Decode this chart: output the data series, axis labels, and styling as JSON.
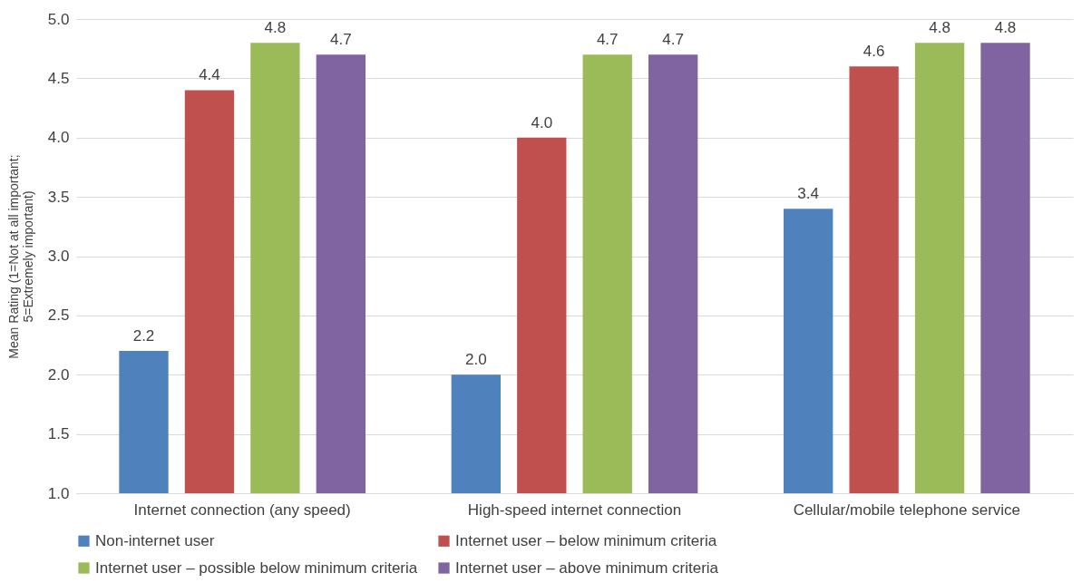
{
  "chart_data": {
    "type": "bar",
    "ylabel": "Mean Rating (1=Not at all important;\n5=Extremely important)",
    "categories": [
      "Internet connection (any speed)",
      "High-speed internet connection",
      "Cellular/mobile telephone service"
    ],
    "series": [
      {
        "name": "Non-internet user",
        "color": "#4f81bd",
        "values": [
          2.2,
          2.0,
          3.4
        ],
        "value_labels": [
          "2.2",
          "2.0",
          "3.4"
        ]
      },
      {
        "name": "Internet user – below minimum criteria",
        "color": "#c0504d",
        "values": [
          4.4,
          4.0,
          4.6
        ],
        "value_labels": [
          "4.4",
          "4.0",
          "4.6"
        ]
      },
      {
        "name": "Internet user – possible below minimum criteria",
        "color": "#9bbb59",
        "values": [
          4.8,
          4.7,
          4.8
        ],
        "value_labels": [
          "4.8",
          "4.7",
          "4.8"
        ]
      },
      {
        "name": "Internet user – above minimum criteria",
        "color": "#8064a2",
        "values": [
          4.7,
          4.7,
          4.8
        ],
        "value_labels": [
          "4.7",
          "4.7",
          "4.8"
        ]
      }
    ],
    "ylim": [
      1.0,
      5.0
    ],
    "yticks": [
      {
        "value": 1,
        "label": "1.0"
      },
      {
        "value": 1.5,
        "label": "1.5"
      },
      {
        "value": 2,
        "label": "2.0"
      },
      {
        "value": 2.5,
        "label": "2.5"
      },
      {
        "value": 3,
        "label": "3.0"
      },
      {
        "value": 3.5,
        "label": "3.5"
      },
      {
        "value": 4,
        "label": "4.0"
      },
      {
        "value": 4.5,
        "label": "4.5"
      },
      {
        "value": 5,
        "label": "5.0"
      }
    ],
    "grid": "y",
    "legend": "bottom"
  }
}
